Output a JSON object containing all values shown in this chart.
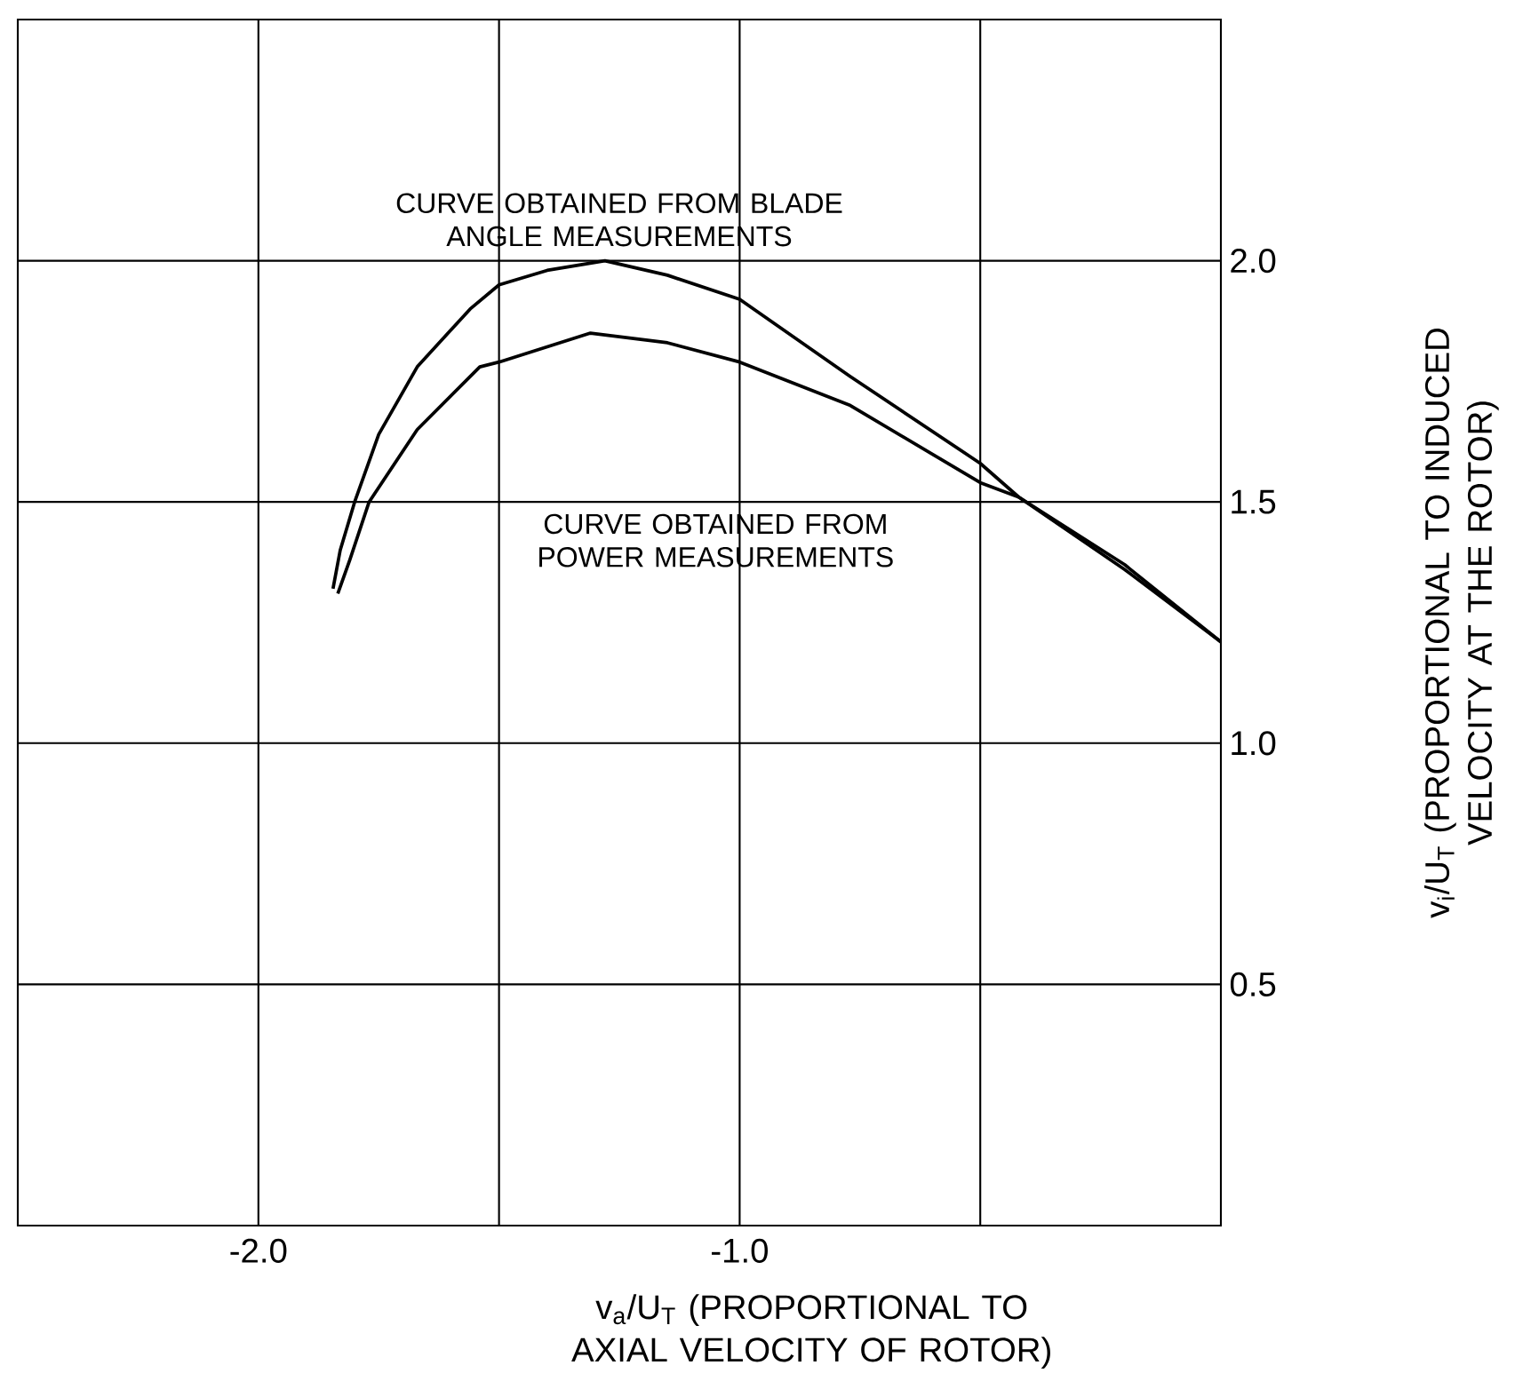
{
  "chart_data": {
    "type": "line",
    "xlabel": "v$_{a}$/U$_{T}$ (PROPORTIONAL TO AXIAL VELOCITY OF ROTOR)",
    "ylabel": "v$_{i}$/U$_{T}$ (PROPORTIONAL TO INDUCED VELOCITY AT THE ROTOR)",
    "xlim": [
      -2.5,
      0
    ],
    "ylim": [
      0,
      2.5
    ],
    "xticks": [
      {
        "value": -2.0,
        "label": "-2.0"
      },
      {
        "value": -1.5,
        "label": null
      },
      {
        "value": -1.0,
        "label": "-1.0"
      },
      {
        "value": -0.5,
        "label": null
      }
    ],
    "yticks": [
      {
        "value": 0.5,
        "label": "0.5"
      },
      {
        "value": 1.0,
        "label": "1.0"
      },
      {
        "value": 1.5,
        "label": "1.5"
      },
      {
        "value": 2.0,
        "label": "2.0"
      }
    ],
    "grid": true,
    "series": [
      {
        "name": "CURVE OBTAINED FROM BLADE ANGLE MEASUREMENTS",
        "color": "#000000",
        "x": [
          -1.845,
          -1.83,
          -1.8,
          -1.75,
          -1.67,
          -1.56,
          -1.5,
          -1.4,
          -1.28,
          -1.15,
          -1.0,
          -0.77,
          -0.5,
          -0.42,
          -0.2,
          0
        ],
        "values": [
          1.32,
          1.4,
          1.5,
          1.64,
          1.78,
          1.9,
          1.95,
          1.98,
          2.0,
          1.97,
          1.92,
          1.76,
          1.58,
          1.51,
          1.37,
          1.21
        ]
      },
      {
        "name": "CURVE OBTAINED FROM POWER MEASUREMENTS",
        "color": "#000000",
        "x": [
          -1.835,
          -1.81,
          -1.77,
          -1.67,
          -1.54,
          -1.5,
          -1.31,
          -1.15,
          -1.0,
          -0.77,
          -0.5,
          -0.42,
          -0.2,
          0
        ],
        "values": [
          1.31,
          1.38,
          1.5,
          1.65,
          1.78,
          1.79,
          1.85,
          1.83,
          1.79,
          1.7,
          1.54,
          1.51,
          1.36,
          1.21
        ]
      }
    ]
  }
}
